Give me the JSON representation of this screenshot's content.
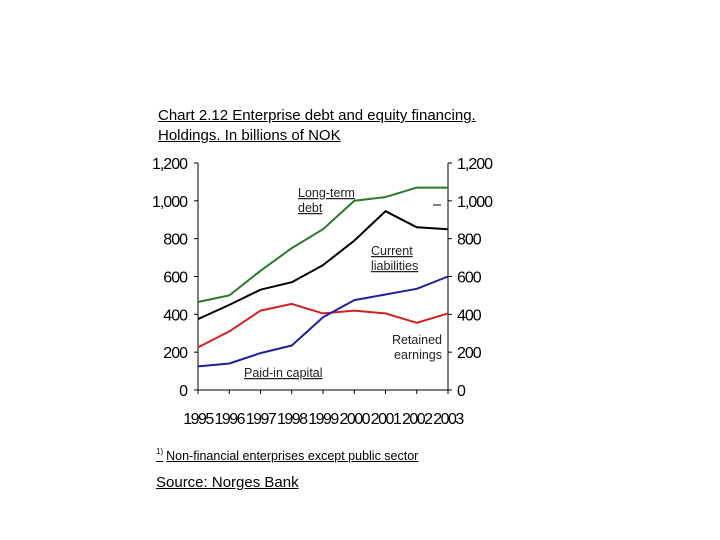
{
  "chart_data": {
    "type": "line",
    "title": "Chart 2.12 Enterprise debt and equity financing. Holdings. In billions of NOK",
    "title_prefix": "Chart 2.12",
    "title_rest": " Enterprise debt and equity financing. Holdings. In billions of NOK",
    "x": [
      "1995",
      "1996",
      "1997",
      "1998",
      "1999",
      "2000",
      "2001",
      "2002",
      "2003"
    ],
    "ylim": [
      0,
      1200
    ],
    "yticks": [
      0,
      200,
      400,
      600,
      800,
      1000,
      1200
    ],
    "ytick_labels": [
      "0",
      "200",
      "400",
      "600",
      "800",
      "1,000",
      "1,200"
    ],
    "series": [
      {
        "name": "Long-term debt",
        "label_lines": [
          "Long-term",
          "debt"
        ],
        "color": "#2a7a2a",
        "values": [
          465,
          500,
          630,
          750,
          850,
          1000,
          1020,
          1070,
          1070
        ]
      },
      {
        "name": "Current liabilities",
        "label_lines": [
          "Current",
          "liabilities"
        ],
        "color": "#000000",
        "values": [
          375,
          450,
          530,
          570,
          660,
          790,
          945,
          860,
          850
        ]
      },
      {
        "name": "Retained earnings",
        "label_lines": [
          "Retained",
          "earnings"
        ],
        "color": "#d02020",
        "values": [
          225,
          310,
          420,
          455,
          405,
          420,
          405,
          355,
          405
        ]
      },
      {
        "name": "Paid-in capital",
        "label_lines": [
          "Paid-in capital"
        ],
        "color": "#1f1fa0",
        "values": [
          125,
          140,
          195,
          235,
          385,
          475,
          505,
          535,
          600
        ]
      }
    ]
  },
  "footnote": {
    "marker": "1)",
    "text": "Non-financial enterprises except public sector"
  },
  "source": "Source: Norges Bank"
}
